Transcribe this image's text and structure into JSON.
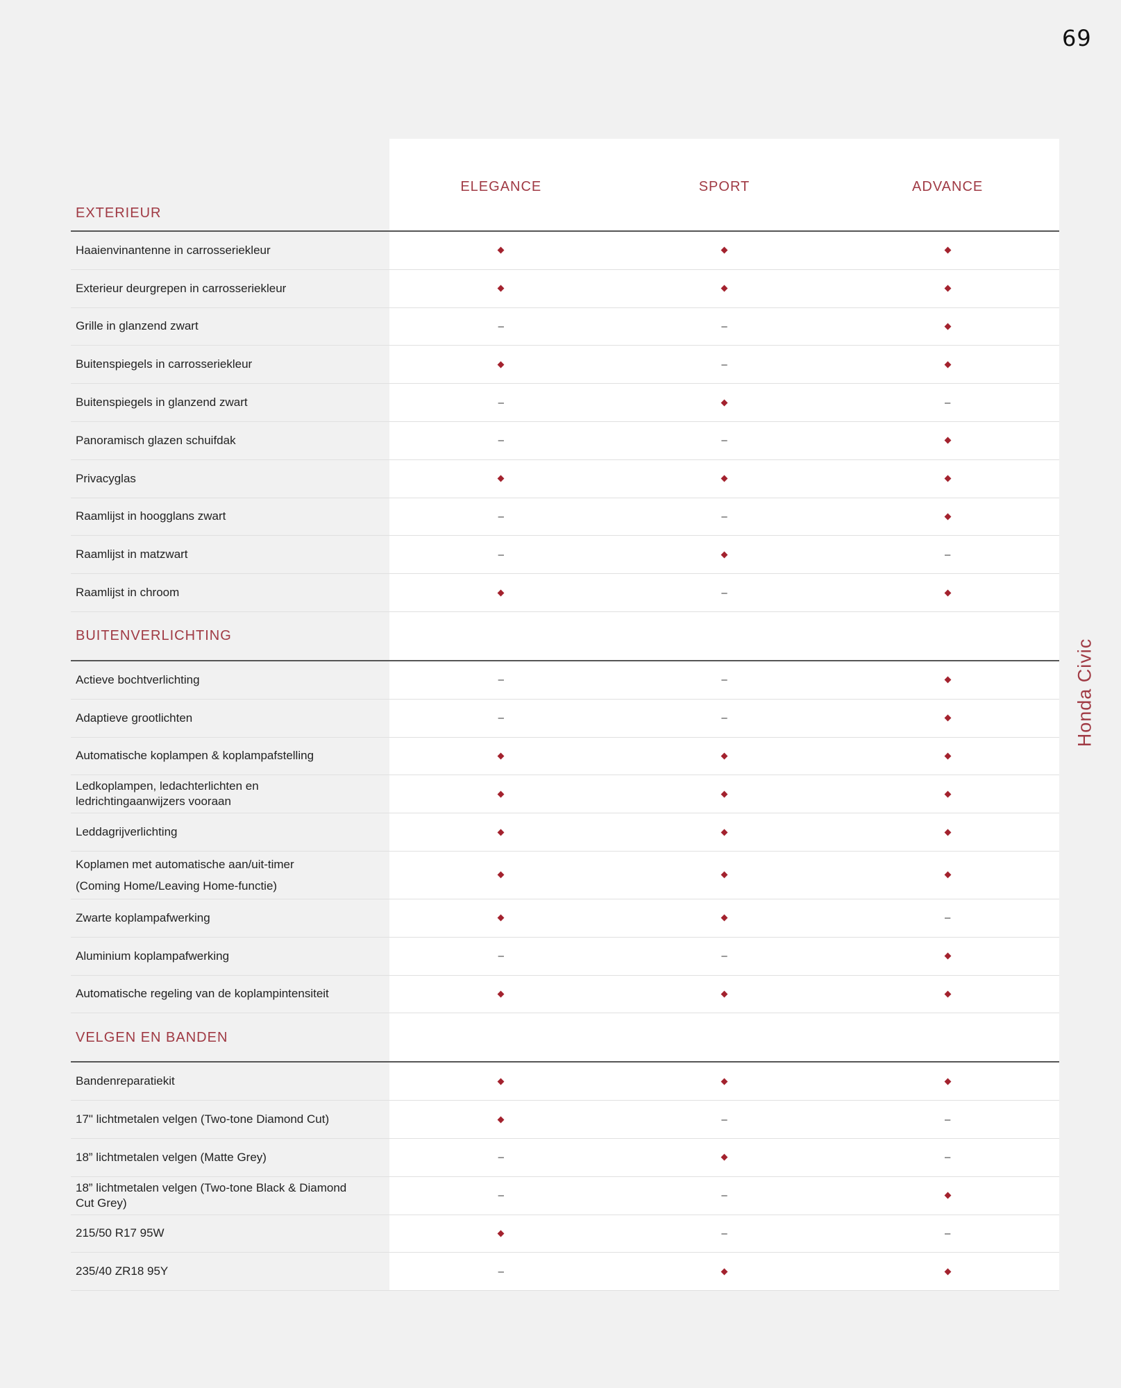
{
  "page_number": "69",
  "side_title": "Honda Civic",
  "columns": [
    "ELEGANCE",
    "SPORT",
    "ADVANCE"
  ],
  "accent_color": "#a3222e",
  "symbols": {
    "yes": "diamond-icon",
    "no": "–"
  },
  "sections": [
    {
      "title": "EXTERIEUR",
      "rows": [
        {
          "label": "Haaienvinantenne in carrosseriekleur",
          "values": [
            "yes",
            "yes",
            "yes"
          ]
        },
        {
          "label": "Exterieur deurgrepen in carrosseriekleur",
          "values": [
            "yes",
            "yes",
            "yes"
          ]
        },
        {
          "label": "Grille in glanzend zwart",
          "values": [
            "no",
            "no",
            "yes"
          ]
        },
        {
          "label": "Buitenspiegels in carrosseriekleur",
          "values": [
            "yes",
            "no",
            "yes"
          ]
        },
        {
          "label": "Buitenspiegels in glanzend zwart",
          "values": [
            "no",
            "yes",
            "no"
          ]
        },
        {
          "label": "Panoramisch glazen schuifdak",
          "values": [
            "no",
            "no",
            "yes"
          ]
        },
        {
          "label": "Privacyglas",
          "values": [
            "yes",
            "yes",
            "yes"
          ]
        },
        {
          "label": "Raamlijst in hoogglans zwart",
          "values": [
            "no",
            "no",
            "yes"
          ]
        },
        {
          "label": "Raamlijst in matzwart",
          "values": [
            "no",
            "yes",
            "no"
          ]
        },
        {
          "label": "Raamlijst in chroom",
          "values": [
            "yes",
            "no",
            "yes"
          ]
        }
      ]
    },
    {
      "title": "BUITENVERLICHTING",
      "rows": [
        {
          "label": "Actieve bochtverlichting",
          "values": [
            "no",
            "no",
            "yes"
          ]
        },
        {
          "label": "Adaptieve grootlichten",
          "values": [
            "no",
            "no",
            "yes"
          ]
        },
        {
          "label": "Automatische koplampen & koplampafstelling",
          "values": [
            "yes",
            "yes",
            "yes"
          ]
        },
        {
          "label": "Ledkoplampen, ledachterlichten en\nledrichtingaanwijzers vooraan",
          "values": [
            "yes",
            "yes",
            "yes"
          ]
        },
        {
          "label": "Leddagrijverlichting",
          "values": [
            "yes",
            "yes",
            "yes"
          ]
        },
        {
          "label": "Koplamen met automatische aan/uit-timer\n(Coming Home/Leaving Home-functie)",
          "values": [
            "yes",
            "yes",
            "yes"
          ]
        },
        {
          "label": "Zwarte koplampafwerking",
          "values": [
            "yes",
            "yes",
            "no"
          ]
        },
        {
          "label": "Aluminium koplampafwerking",
          "values": [
            "no",
            "no",
            "yes"
          ]
        },
        {
          "label": "Automatische regeling van de koplampintensiteit",
          "values": [
            "yes",
            "yes",
            "yes"
          ]
        }
      ]
    },
    {
      "title": "VELGEN EN BANDEN",
      "rows": [
        {
          "label": "Bandenreparatiekit",
          "values": [
            "yes",
            "yes",
            "yes"
          ]
        },
        {
          "label": "17\" lichtmetalen velgen (Two-tone Diamond Cut)",
          "values": [
            "yes",
            "no",
            "no"
          ]
        },
        {
          "label": "18” lichtmetalen velgen (Matte Grey)",
          "values": [
            "no",
            "yes",
            "no"
          ]
        },
        {
          "label": "18” lichtmetalen velgen (Two-tone Black & Diamond\nCut Grey)",
          "values": [
            "no",
            "no",
            "yes"
          ]
        },
        {
          "label": "215/50 R17 95W",
          "values": [
            "yes",
            "no",
            "no"
          ]
        },
        {
          "label": "235/40 ZR18 95Y",
          "values": [
            "no",
            "yes",
            "yes"
          ]
        }
      ]
    }
  ]
}
